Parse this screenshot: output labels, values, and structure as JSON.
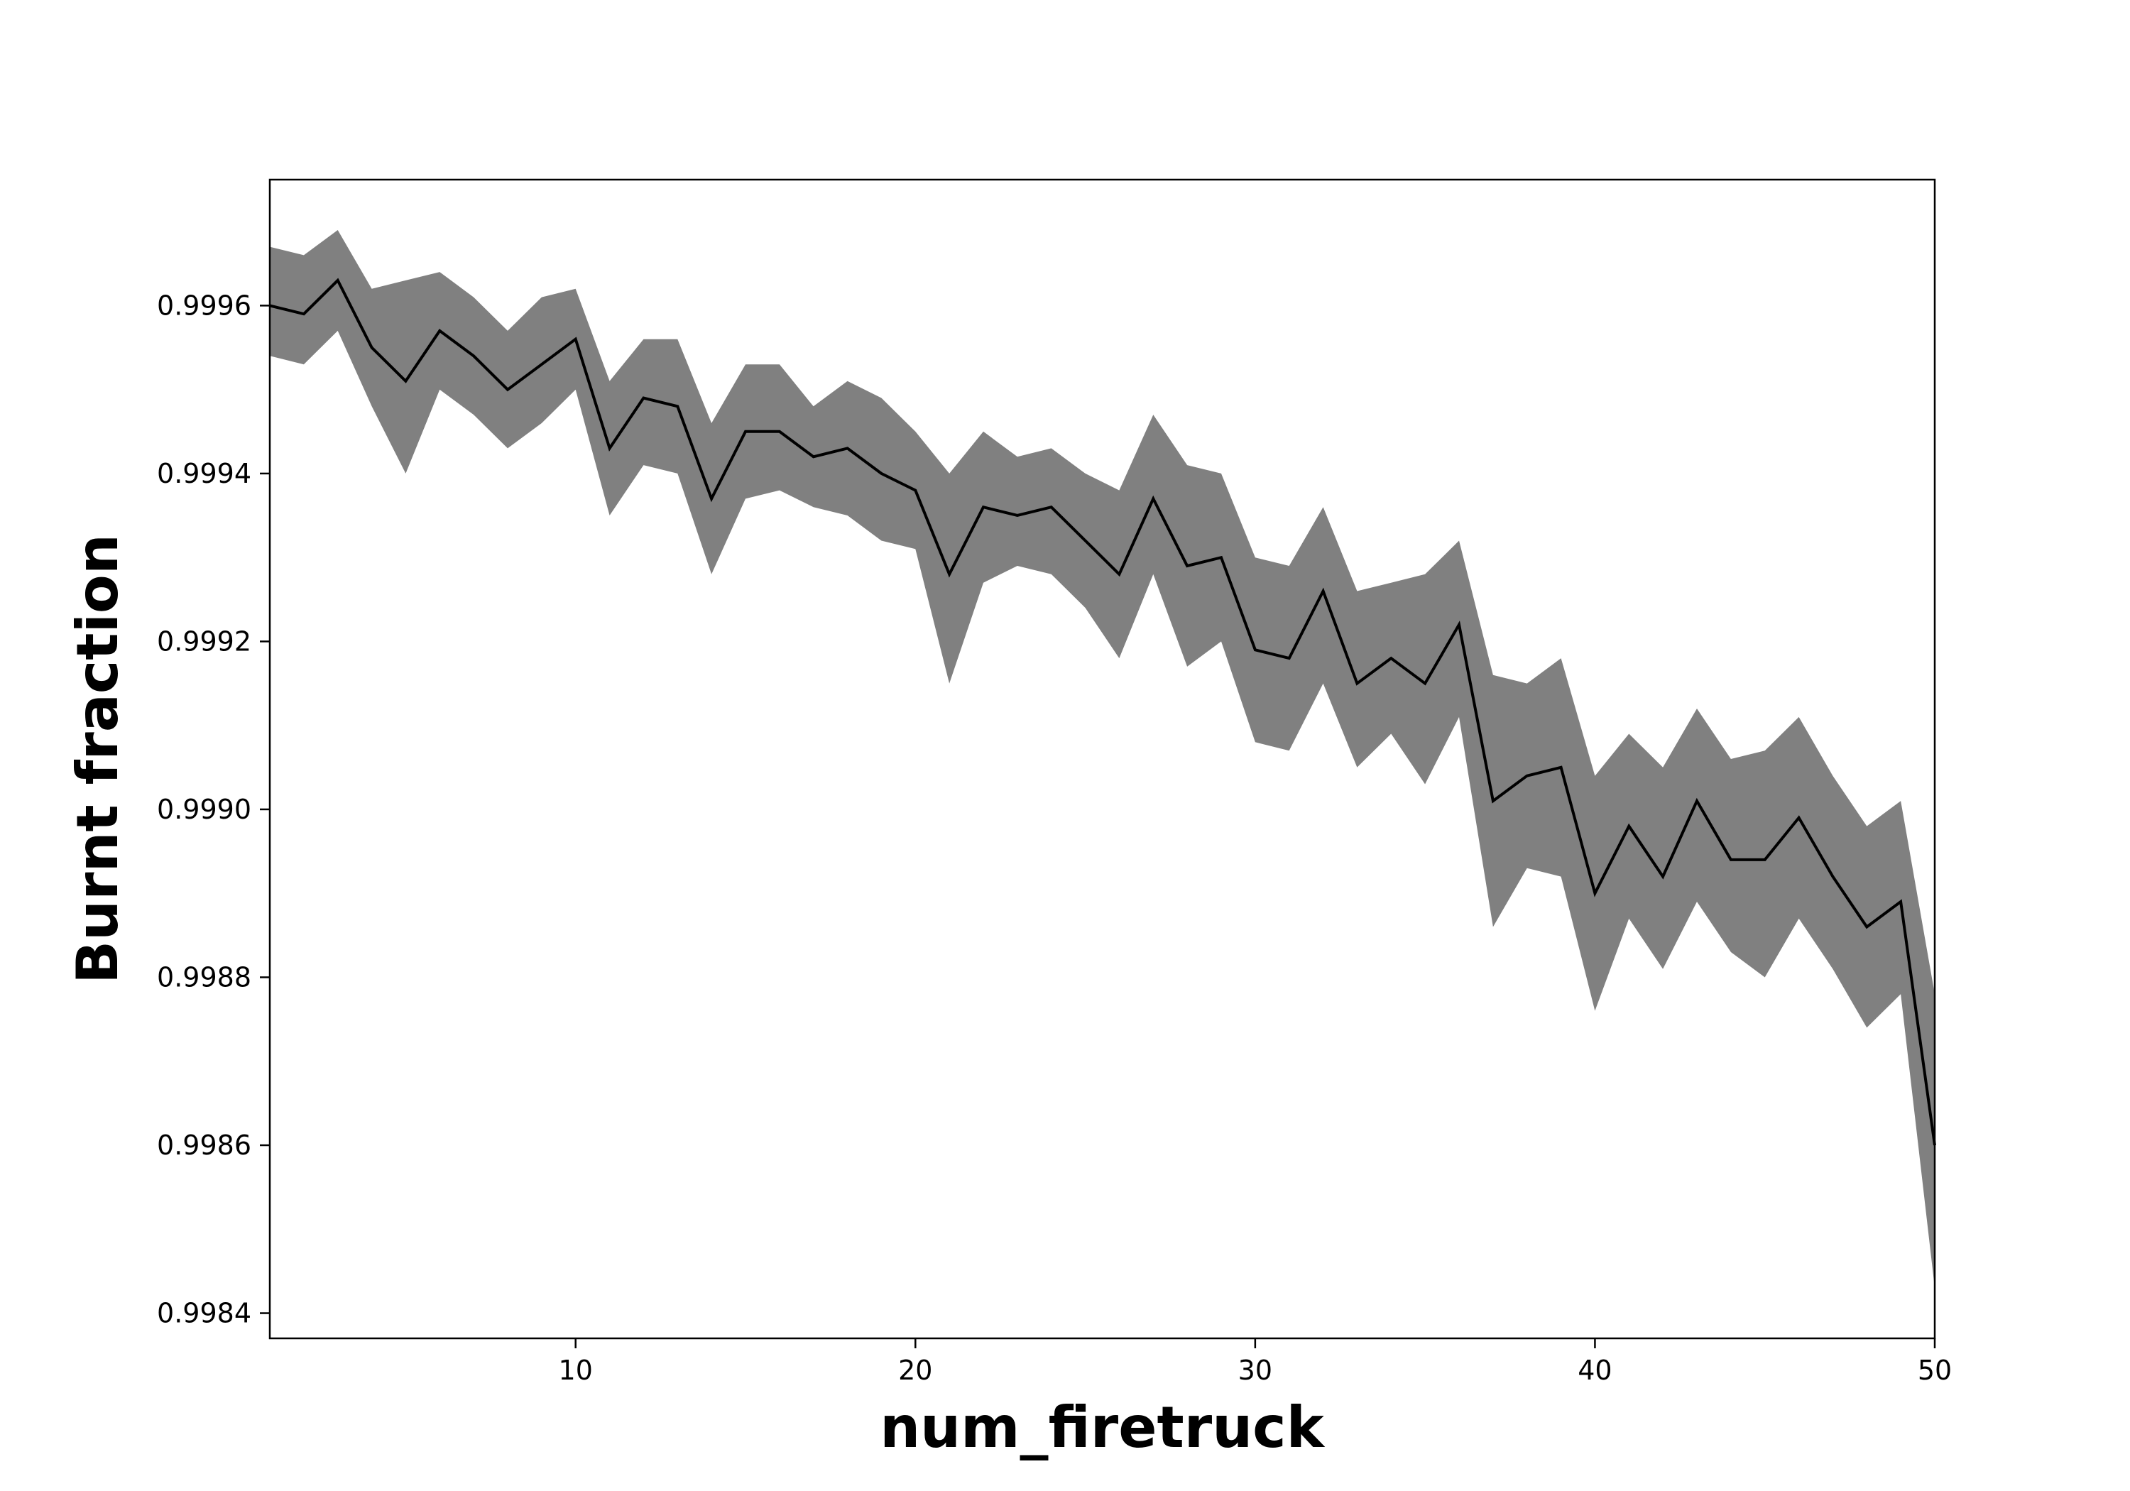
{
  "chart_data": {
    "type": "line",
    "title": "",
    "xlabel": "num_firetruck",
    "ylabel": "Burnt fraction",
    "xlim": [
      1,
      50
    ],
    "ylim": [
      0.99837,
      0.99975
    ],
    "xticks": [
      10,
      20,
      30,
      40,
      50
    ],
    "yticks": [
      0.9984,
      0.9986,
      0.9988,
      0.999,
      0.9992,
      0.9994,
      0.9996
    ],
    "ytick_labels": [
      "0.9984",
      "0.9986",
      "0.9988",
      "0.9990",
      "0.9992",
      "0.9994",
      "0.9996"
    ],
    "grid": false,
    "legend": "none",
    "colors": {
      "line": "#000000",
      "band": "#808080"
    },
    "series": [
      {
        "x": [
          1,
          2,
          3,
          4,
          5,
          6,
          7,
          8,
          9,
          10,
          11,
          12,
          13,
          14,
          15,
          16,
          17,
          18,
          19,
          20,
          21,
          22,
          23,
          24,
          25,
          26,
          27,
          28,
          29,
          30,
          31,
          32,
          33,
          34,
          35,
          36,
          37,
          38,
          39,
          40,
          41,
          42,
          43,
          44,
          45,
          46,
          47,
          48,
          49,
          50
        ],
        "mean": [
          0.9996,
          0.99959,
          0.99963,
          0.99955,
          0.99951,
          0.99957,
          0.99954,
          0.9995,
          0.99953,
          0.99956,
          0.99943,
          0.99949,
          0.99948,
          0.99937,
          0.99945,
          0.99945,
          0.99942,
          0.99943,
          0.9994,
          0.99938,
          0.99928,
          0.99936,
          0.99935,
          0.99936,
          0.99932,
          0.99928,
          0.99937,
          0.99929,
          0.9993,
          0.99919,
          0.99918,
          0.99926,
          0.99915,
          0.99918,
          0.99915,
          0.99922,
          0.99901,
          0.99904,
          0.99905,
          0.9989,
          0.99898,
          0.99892,
          0.99901,
          0.99894,
          0.99894,
          0.99899,
          0.99892,
          0.99886,
          0.99889,
          0.9986
        ],
        "upper": [
          0.99967,
          0.99966,
          0.99969,
          0.99962,
          0.99963,
          0.99964,
          0.99961,
          0.99957,
          0.99961,
          0.99962,
          0.99951,
          0.99956,
          0.99956,
          0.99946,
          0.99953,
          0.99953,
          0.99948,
          0.99951,
          0.99949,
          0.99945,
          0.9994,
          0.99945,
          0.99942,
          0.99943,
          0.9994,
          0.99938,
          0.99947,
          0.99941,
          0.9994,
          0.9993,
          0.99929,
          0.99936,
          0.99926,
          0.99927,
          0.99928,
          0.99932,
          0.99916,
          0.99915,
          0.99918,
          0.99904,
          0.99909,
          0.99905,
          0.99912,
          0.99906,
          0.99907,
          0.99911,
          0.99904,
          0.99898,
          0.99901,
          0.99878
        ],
        "lower": [
          0.99954,
          0.99953,
          0.99957,
          0.99948,
          0.9994,
          0.9995,
          0.99947,
          0.99943,
          0.99946,
          0.9995,
          0.99935,
          0.99941,
          0.9994,
          0.99928,
          0.99937,
          0.99938,
          0.99936,
          0.99935,
          0.99932,
          0.99931,
          0.99915,
          0.99927,
          0.99929,
          0.99928,
          0.99924,
          0.99918,
          0.99928,
          0.99917,
          0.9992,
          0.99908,
          0.99907,
          0.99915,
          0.99905,
          0.99909,
          0.99903,
          0.99911,
          0.99886,
          0.99893,
          0.99892,
          0.99876,
          0.99887,
          0.99881,
          0.99889,
          0.99883,
          0.9988,
          0.99887,
          0.99881,
          0.99874,
          0.99878,
          0.99843
        ]
      }
    ]
  }
}
